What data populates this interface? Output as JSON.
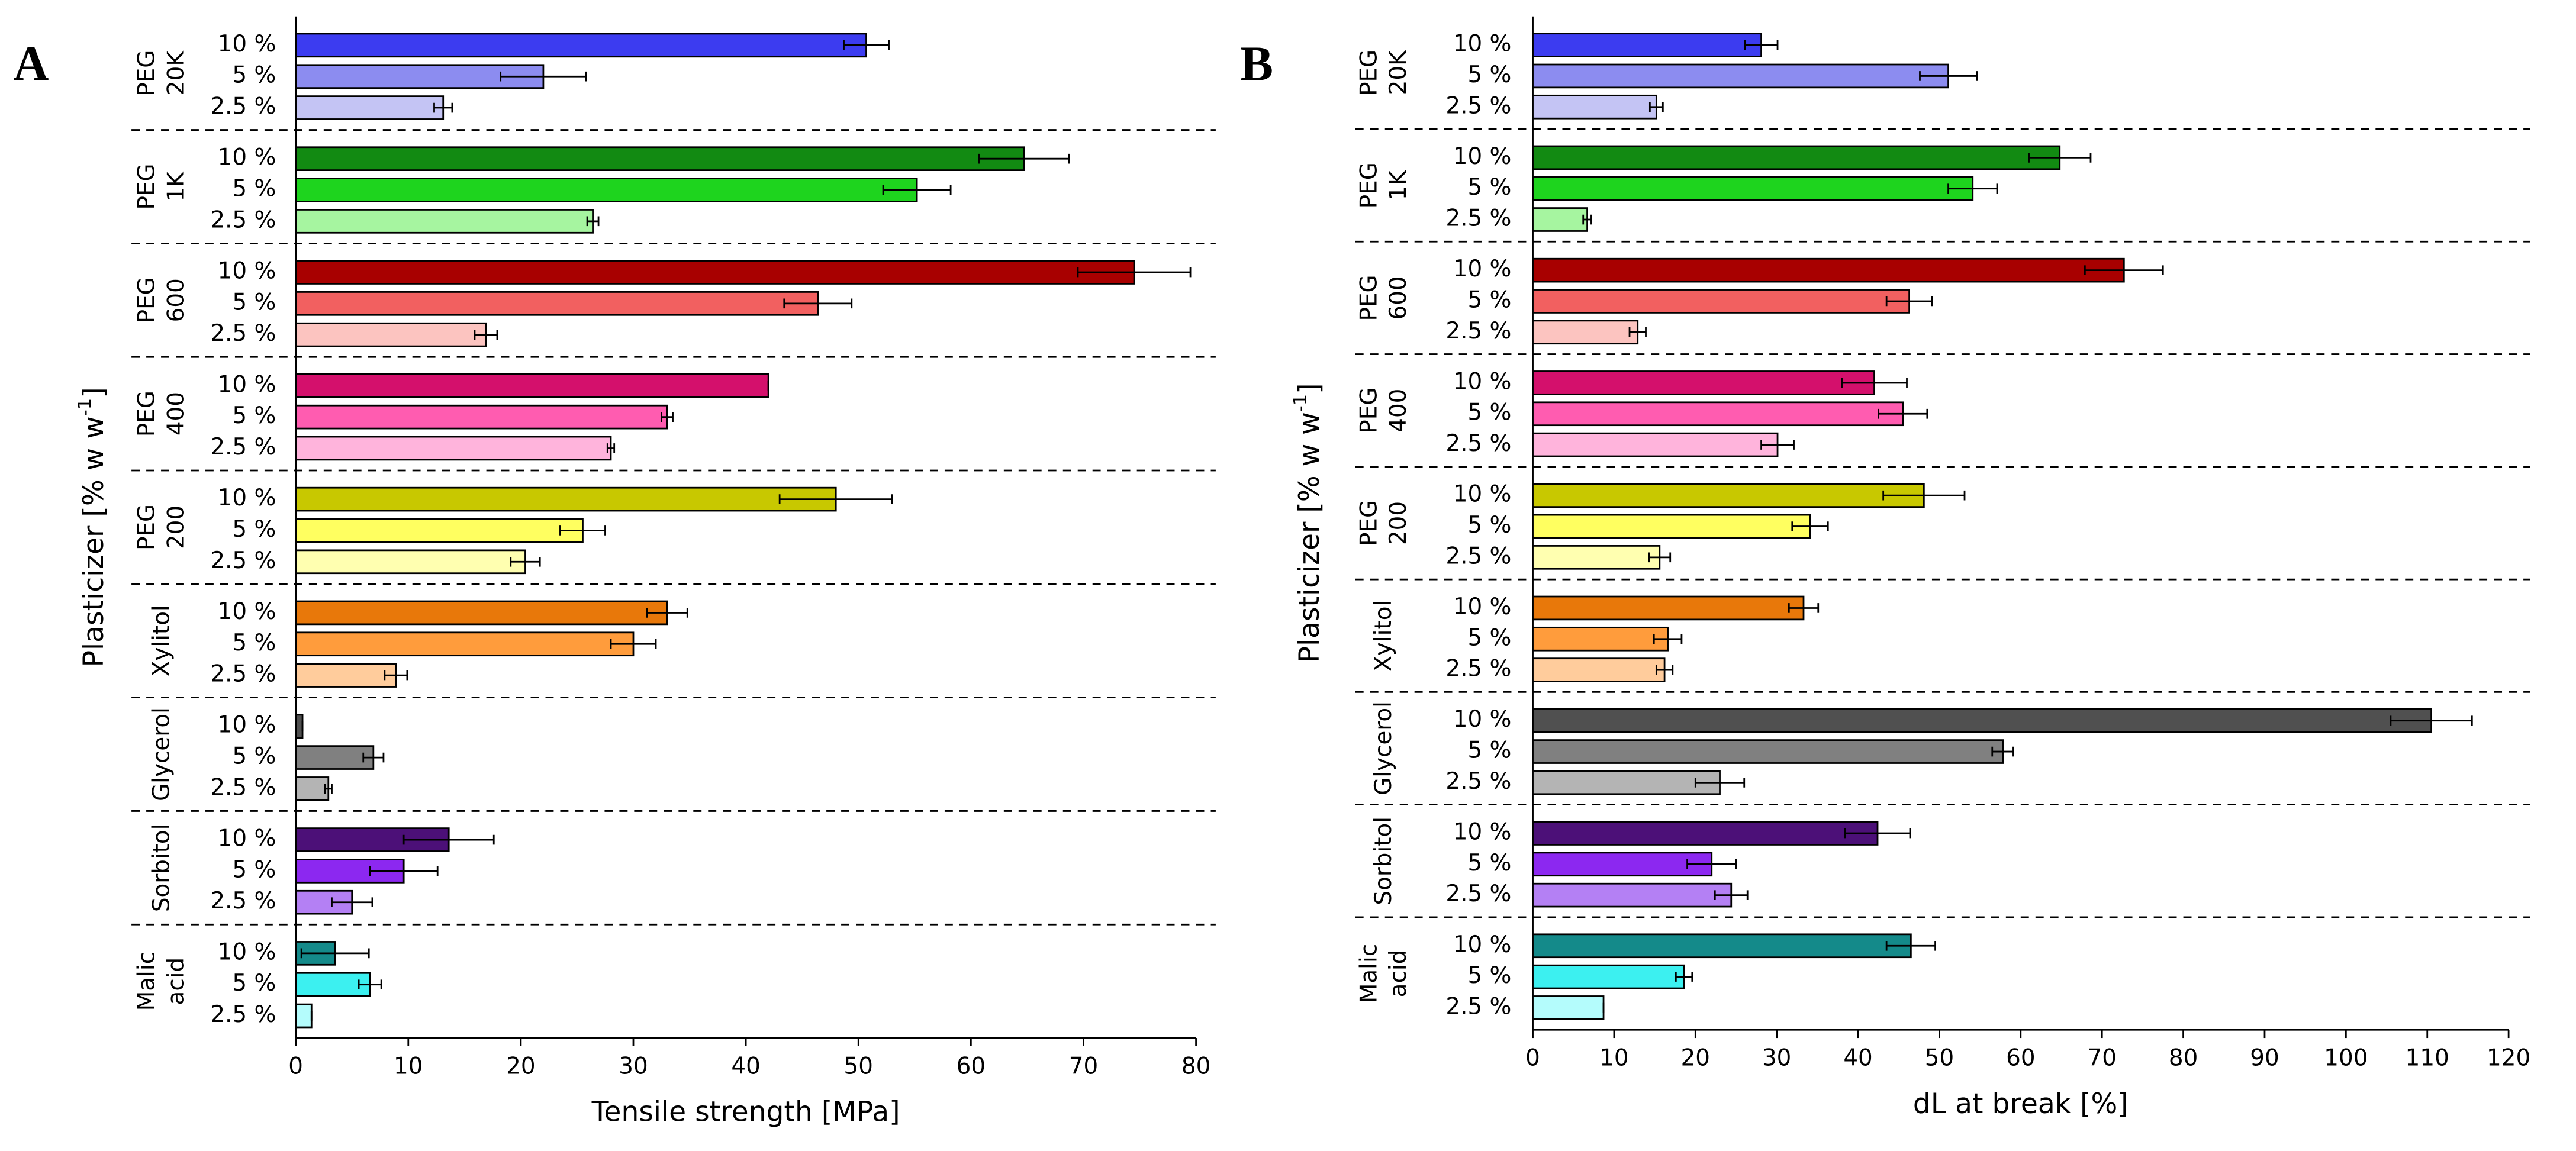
{
  "chart_data": [
    {
      "type": "grouped-hbar",
      "panel_label": "A",
      "ylabel": {
        "text": "Plasticizer [% w w",
        "sup": "-1",
        "end": "]"
      },
      "xlabel": "Tensile strength [MPa]",
      "xlim": [
        0,
        80
      ],
      "xticks": [
        0,
        10,
        20,
        30,
        40,
        50,
        60,
        70,
        80
      ],
      "groups": [
        {
          "label": [
            "PEG",
            "20K"
          ],
          "categories": [
            "10 %",
            "5 %",
            "2.5 %"
          ],
          "values": [
            50.7,
            22,
            13.1
          ],
          "errors": [
            2,
            3.8,
            0.8
          ],
          "colors": [
            "#3c3cf0",
            "#8c8cf0",
            "#c4c4f4"
          ]
        },
        {
          "label": [
            "PEG",
            "1K"
          ],
          "categories": [
            "10 %",
            "5 %",
            "2.5 %"
          ],
          "values": [
            64.7,
            55.2,
            26.4
          ],
          "errors": [
            4,
            3,
            0.5
          ],
          "colors": [
            "#128a12",
            "#1ed41e",
            "#a6f5a0"
          ]
        },
        {
          "label": [
            "PEG",
            "600"
          ],
          "categories": [
            "10 %",
            "5 %",
            "2.5 %"
          ],
          "values": [
            74.5,
            46.4,
            16.9
          ],
          "errors": [
            5,
            3,
            1
          ],
          "colors": [
            "#a80000",
            "#f26060",
            "#fcc4c0"
          ]
        },
        {
          "label": [
            "PEG",
            "400"
          ],
          "categories": [
            "10 %",
            "5 %",
            "2.5 %"
          ],
          "values": [
            42,
            33,
            28
          ],
          "errors": [
            0,
            0.5,
            0.3
          ],
          "colors": [
            "#d4106c",
            "#ff5cb0",
            "#ffb4dc"
          ]
        },
        {
          "label": [
            "PEG",
            "200"
          ],
          "categories": [
            "10 %",
            "5 %",
            "2.5 %"
          ],
          "values": [
            48,
            25.5,
            20.4
          ],
          "errors": [
            5,
            2,
            1.3
          ],
          "colors": [
            "#c8c800",
            "#ffff60",
            "#ffffb0"
          ]
        },
        {
          "label": [
            "Xylitol"
          ],
          "categories": [
            "10 %",
            "5 %",
            "2.5 %"
          ],
          "values": [
            33,
            30,
            8.9
          ],
          "errors": [
            1.8,
            2,
            1
          ],
          "colors": [
            "#e8780a",
            "#ff9c3c",
            "#ffcc9c"
          ]
        },
        {
          "label": [
            "Glycerol"
          ],
          "categories": [
            "10 %",
            "5 %",
            "2.5 %"
          ],
          "values": [
            0.6,
            6.9,
            2.9
          ],
          "errors": [
            0,
            0.9,
            0.3
          ],
          "colors": [
            "#505050",
            "#808080",
            "#b4b4b4"
          ]
        },
        {
          "label": [
            "Sorbitol"
          ],
          "categories": [
            "10 %",
            "5 %",
            "2.5 %"
          ],
          "values": [
            13.6,
            9.6,
            5
          ],
          "errors": [
            4,
            3,
            1.8
          ],
          "colors": [
            "#4c1078",
            "#8c28f0",
            "#b480f4"
          ]
        },
        {
          "label": [
            "Malic",
            "acid"
          ],
          "categories": [
            "10 %",
            "5 %",
            "2.5 %"
          ],
          "values": [
            3.5,
            6.6,
            1.4
          ],
          "errors": [
            3,
            1,
            0
          ],
          "colors": [
            "#148a8a",
            "#3cf0f0",
            "#b4fcfc"
          ]
        }
      ]
    },
    {
      "type": "grouped-hbar",
      "panel_label": "B",
      "ylabel": {
        "text": "Plasticizer [% w w",
        "sup": "-1",
        "end": "]"
      },
      "xlabel": "dL at break [%]",
      "xlim": [
        0,
        120
      ],
      "xticks": [
        0,
        10,
        20,
        30,
        40,
        50,
        60,
        70,
        80,
        90,
        100,
        110,
        120
      ],
      "groups": [
        {
          "label": [
            "PEG",
            "20K"
          ],
          "categories": [
            "10 %",
            "5 %",
            "2.5 %"
          ],
          "values": [
            28.1,
            51.1,
            15.2
          ],
          "errors": [
            2,
            3.5,
            0.8
          ],
          "colors": [
            "#3c3cf0",
            "#8c8cf0",
            "#c4c4f4"
          ]
        },
        {
          "label": [
            "PEG",
            "1K"
          ],
          "categories": [
            "10 %",
            "5 %",
            "2.5 %"
          ],
          "values": [
            64.8,
            54.1,
            6.7
          ],
          "errors": [
            3.8,
            3,
            0.5
          ],
          "colors": [
            "#128a12",
            "#1ed41e",
            "#a6f5a0"
          ]
        },
        {
          "label": [
            "PEG",
            "600"
          ],
          "categories": [
            "10 %",
            "5 %",
            "2.5 %"
          ],
          "values": [
            72.7,
            46.3,
            12.9
          ],
          "errors": [
            4.8,
            2.8,
            1
          ],
          "colors": [
            "#a80000",
            "#f26060",
            "#fcc4c0"
          ]
        },
        {
          "label": [
            "PEG",
            "400"
          ],
          "categories": [
            "10 %",
            "5 %",
            "2.5 %"
          ],
          "values": [
            42,
            45.5,
            30.1
          ],
          "errors": [
            4,
            3,
            2
          ],
          "colors": [
            "#d4106c",
            "#ff5cb0",
            "#ffb4dc"
          ]
        },
        {
          "label": [
            "PEG",
            "200"
          ],
          "categories": [
            "10 %",
            "5 %",
            "2.5 %"
          ],
          "values": [
            48.1,
            34.1,
            15.6
          ],
          "errors": [
            5,
            2.2,
            1.3
          ],
          "colors": [
            "#c8c800",
            "#ffff60",
            "#ffffb0"
          ]
        },
        {
          "label": [
            "Xylitol"
          ],
          "categories": [
            "10 %",
            "5 %",
            "2.5 %"
          ],
          "values": [
            33.3,
            16.6,
            16.2
          ],
          "errors": [
            1.8,
            1.7,
            1
          ],
          "colors": [
            "#e8780a",
            "#ff9c3c",
            "#ffcc9c"
          ]
        },
        {
          "label": [
            "Glycerol"
          ],
          "categories": [
            "10 %",
            "5 %",
            "2.5 %"
          ],
          "values": [
            110.5,
            57.8,
            23
          ],
          "errors": [
            5,
            1.3,
            3
          ],
          "colors": [
            "#505050",
            "#808080",
            "#b4b4b4"
          ]
        },
        {
          "label": [
            "Sorbitol"
          ],
          "categories": [
            "10 %",
            "5 %",
            "2.5 %"
          ],
          "values": [
            42.4,
            22,
            24.4
          ],
          "errors": [
            4,
            3,
            2
          ],
          "colors": [
            "#4c1078",
            "#8c28f0",
            "#b480f4"
          ]
        },
        {
          "label": [
            "Malic",
            "acid"
          ],
          "categories": [
            "10 %",
            "5 %",
            "2.5 %"
          ],
          "values": [
            46.5,
            18.6,
            8.7
          ],
          "errors": [
            3,
            1,
            0
          ],
          "colors": [
            "#148a8a",
            "#3cf0f0",
            "#b4fcfc"
          ]
        }
      ]
    }
  ]
}
